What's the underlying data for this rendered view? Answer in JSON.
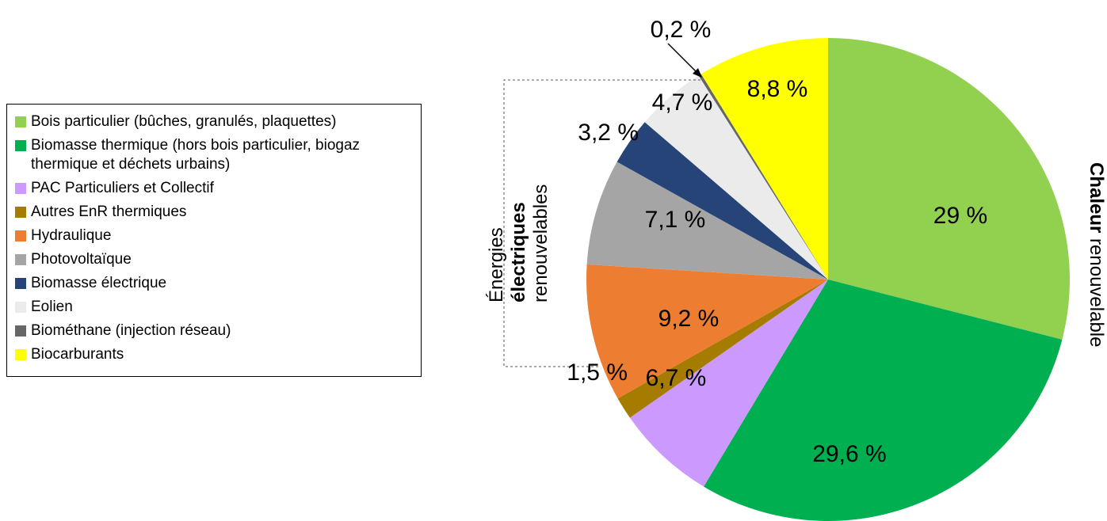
{
  "chart_data": {
    "type": "pie",
    "slices": [
      {
        "name": "Bois particulier (bûches, granulés, plaquettes)",
        "value": 29.0,
        "label": "29 %",
        "color": "#92d050"
      },
      {
        "name": "Biomasse thermique (hors bois particulier, biogaz thermique et déchets urbains)",
        "value": 29.6,
        "label": "29,6 %",
        "color": "#00b050"
      },
      {
        "name": "PAC Particuliers et Collectif",
        "value": 6.7,
        "label": "6,7 %",
        "color": "#cc99ff"
      },
      {
        "name": "Autres EnR thermiques",
        "value": 1.5,
        "label": "1,5 %",
        "color": "#a57c00"
      },
      {
        "name": "Hydraulique",
        "value": 9.2,
        "label": "9,2 %",
        "color": "#ed7d31"
      },
      {
        "name": "Photovoltaïque",
        "value": 7.1,
        "label": "7,1 %",
        "color": "#a5a5a5"
      },
      {
        "name": "Biomasse électrique",
        "value": 3.2,
        "label": "3,2 %",
        "color": "#264478"
      },
      {
        "name": "Eolien",
        "value": 4.7,
        "label": "4,7 %",
        "color": "#ebebeb"
      },
      {
        "name": "Biométhane (injection réseau)",
        "value": 0.2,
        "label": "0,2 %",
        "color": "#666666"
      },
      {
        "name": "Biocarburants",
        "value": 8.8,
        "label": "8,8 %",
        "color": "#ffff00"
      }
    ],
    "legend_position": "left",
    "group_labels": {
      "electric": {
        "line1": "Énergies",
        "line2": "électriques",
        "line3": "renouvelables"
      },
      "heat": {
        "bold": "Chaleur",
        "rest": " renouvelable"
      }
    }
  }
}
